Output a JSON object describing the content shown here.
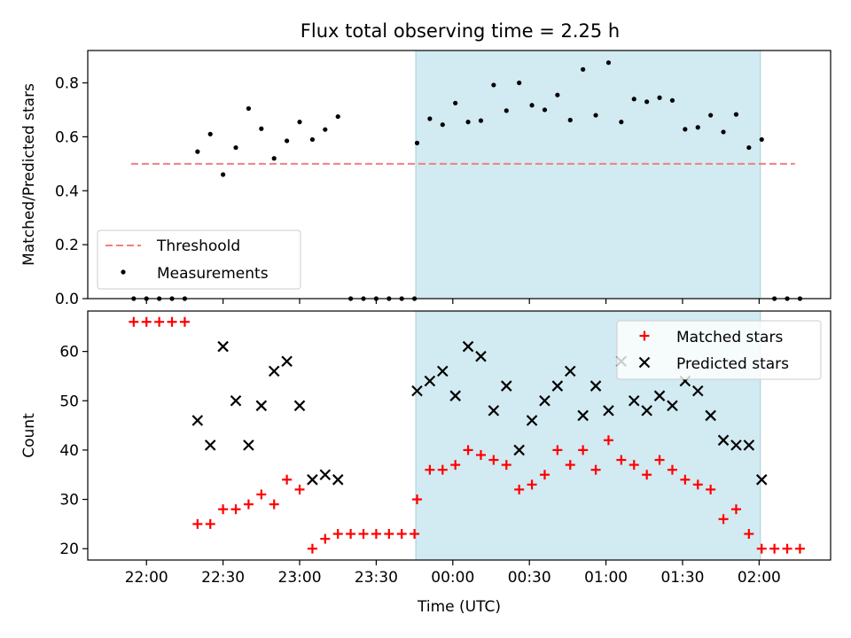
{
  "chart_data": {
    "type": "scatter",
    "title": "Flux total observing time = 2.25 h",
    "xlabel": "Time (UTC)",
    "x_units": "minutes after 00:00 UTC (negative = previous day)",
    "x_tick_labels": [
      "22:00",
      "22:30",
      "23:00",
      "23:30",
      "00:00",
      "00:30",
      "01:00",
      "01:30",
      "02:00"
    ],
    "x_tick_values": [
      -120,
      -90,
      -60,
      -30,
      0,
      30,
      60,
      90,
      120
    ],
    "xlim": [
      -143,
      148
    ],
    "highlight_span": {
      "x_start": -14.5,
      "x_end": 120.5,
      "color": "#add8e6"
    },
    "panels": [
      {
        "ylabel": "Matched/Predicted stars",
        "ylim": [
          0,
          0.92
        ],
        "y_ticks": [
          "0.0",
          "0.2",
          "0.4",
          "0.6",
          "0.8"
        ],
        "y_tick_values": [
          0,
          0.2,
          0.4,
          0.6,
          0.8
        ],
        "legend_position": "lower-left",
        "threshold": {
          "name": "Threshoold",
          "value": 0.5,
          "x_range": [
            -126,
            134
          ],
          "color": "#f08080"
        },
        "series": [
          {
            "name": "Measurements",
            "color": "#000000",
            "marker": "dot",
            "points": [
              [
                -125,
                0
              ],
              [
                -120,
                0
              ],
              [
                -115,
                0
              ],
              [
                -110,
                0
              ],
              [
                -105,
                0
              ],
              [
                -100,
                0.545
              ],
              [
                -95,
                0.61
              ],
              [
                -90,
                0.46
              ],
              [
                -85,
                0.56
              ],
              [
                -80,
                0.705
              ],
              [
                -75,
                0.63
              ],
              [
                -70,
                0.52
              ],
              [
                -65,
                0.585
              ],
              [
                -60,
                0.655
              ],
              [
                -55,
                0.59
              ],
              [
                -50,
                0.627
              ],
              [
                -45,
                0.675
              ],
              [
                -40,
                0
              ],
              [
                -35,
                0
              ],
              [
                -30,
                0
              ],
              [
                -25,
                0
              ],
              [
                -20,
                0
              ],
              [
                -15,
                0
              ],
              [
                -14,
                0.577
              ],
              [
                -9,
                0.667
              ],
              [
                -4,
                0.645
              ],
              [
                1,
                0.725
              ],
              [
                6,
                0.655
              ],
              [
                11,
                0.66
              ],
              [
                16,
                0.792
              ],
              [
                21,
                0.697
              ],
              [
                26,
                0.8
              ],
              [
                31,
                0.717
              ],
              [
                36,
                0.7
              ],
              [
                41,
                0.755
              ],
              [
                46,
                0.662
              ],
              [
                51,
                0.85
              ],
              [
                56,
                0.68
              ],
              [
                61,
                0.875
              ],
              [
                66,
                0.655
              ],
              [
                71,
                0.74
              ],
              [
                76,
                0.73
              ],
              [
                81,
                0.745
              ],
              [
                86,
                0.735
              ],
              [
                91,
                0.628
              ],
              [
                96,
                0.635
              ],
              [
                101,
                0.68
              ],
              [
                106,
                0.618
              ],
              [
                111,
                0.683
              ],
              [
                116,
                0.56
              ],
              [
                121,
                0.59
              ],
              [
                126,
                0
              ],
              [
                131,
                0
              ],
              [
                136,
                0
              ]
            ]
          }
        ]
      },
      {
        "ylabel": "Count",
        "ylim": [
          17.7,
          68.2
        ],
        "y_ticks": [
          "20",
          "30",
          "40",
          "50",
          "60"
        ],
        "y_tick_values": [
          20,
          30,
          40,
          50,
          60
        ],
        "legend_position": "upper-right",
        "series": [
          {
            "name": "Matched stars",
            "color": "#ff0000",
            "marker": "plus",
            "points": [
              [
                -125,
                66
              ],
              [
                -120,
                66
              ],
              [
                -115,
                66
              ],
              [
                -110,
                66
              ],
              [
                -105,
                66
              ],
              [
                -100,
                25
              ],
              [
                -95,
                25
              ],
              [
                -90,
                28
              ],
              [
                -85,
                28
              ],
              [
                -80,
                29
              ],
              [
                -75,
                31
              ],
              [
                -70,
                29
              ],
              [
                -65,
                34
              ],
              [
                -60,
                32
              ],
              [
                -55,
                20
              ],
              [
                -50,
                22
              ],
              [
                -45,
                23
              ],
              [
                -40,
                23
              ],
              [
                -35,
                23
              ],
              [
                -30,
                23
              ],
              [
                -25,
                23
              ],
              [
                -20,
                23
              ],
              [
                -15,
                23
              ],
              [
                -14,
                30
              ],
              [
                -9,
                36
              ],
              [
                -4,
                36
              ],
              [
                1,
                37
              ],
              [
                6,
                40
              ],
              [
                11,
                39
              ],
              [
                16,
                38
              ],
              [
                21,
                37
              ],
              [
                26,
                32
              ],
              [
                31,
                33
              ],
              [
                36,
                35
              ],
              [
                41,
                40
              ],
              [
                46,
                37
              ],
              [
                51,
                40
              ],
              [
                56,
                36
              ],
              [
                61,
                42
              ],
              [
                66,
                38
              ],
              [
                71,
                37
              ],
              [
                76,
                35
              ],
              [
                81,
                38
              ],
              [
                86,
                36
              ],
              [
                91,
                34
              ],
              [
                96,
                33
              ],
              [
                101,
                32
              ],
              [
                106,
                26
              ],
              [
                111,
                28
              ],
              [
                116,
                23
              ],
              [
                121,
                20
              ],
              [
                126,
                20
              ],
              [
                131,
                20
              ],
              [
                136,
                20
              ]
            ]
          },
          {
            "name": "Predicted stars",
            "color": "#000000",
            "marker": "x",
            "points": [
              [
                -100,
                46
              ],
              [
                -95,
                41
              ],
              [
                -90,
                61
              ],
              [
                -85,
                50
              ],
              [
                -80,
                41
              ],
              [
                -75,
                49
              ],
              [
                -70,
                56
              ],
              [
                -65,
                58
              ],
              [
                -60,
                49
              ],
              [
                -55,
                34
              ],
              [
                -50,
                35
              ],
              [
                -45,
                34
              ],
              [
                -14,
                52
              ],
              [
                -9,
                54
              ],
              [
                -4,
                56
              ],
              [
                1,
                51
              ],
              [
                6,
                61
              ],
              [
                11,
                59
              ],
              [
                16,
                48
              ],
              [
                21,
                53
              ],
              [
                26,
                40
              ],
              [
                31,
                46
              ],
              [
                36,
                50
              ],
              [
                41,
                53
              ],
              [
                46,
                56
              ],
              [
                51,
                47
              ],
              [
                56,
                53
              ],
              [
                61,
                48
              ],
              [
                66,
                58
              ],
              [
                71,
                50
              ],
              [
                76,
                48
              ],
              [
                81,
                51
              ],
              [
                86,
                49
              ],
              [
                91,
                54
              ],
              [
                96,
                52
              ],
              [
                101,
                47
              ],
              [
                106,
                42
              ],
              [
                111,
                41
              ],
              [
                116,
                41
              ],
              [
                121,
                34
              ]
            ]
          }
        ]
      }
    ]
  }
}
